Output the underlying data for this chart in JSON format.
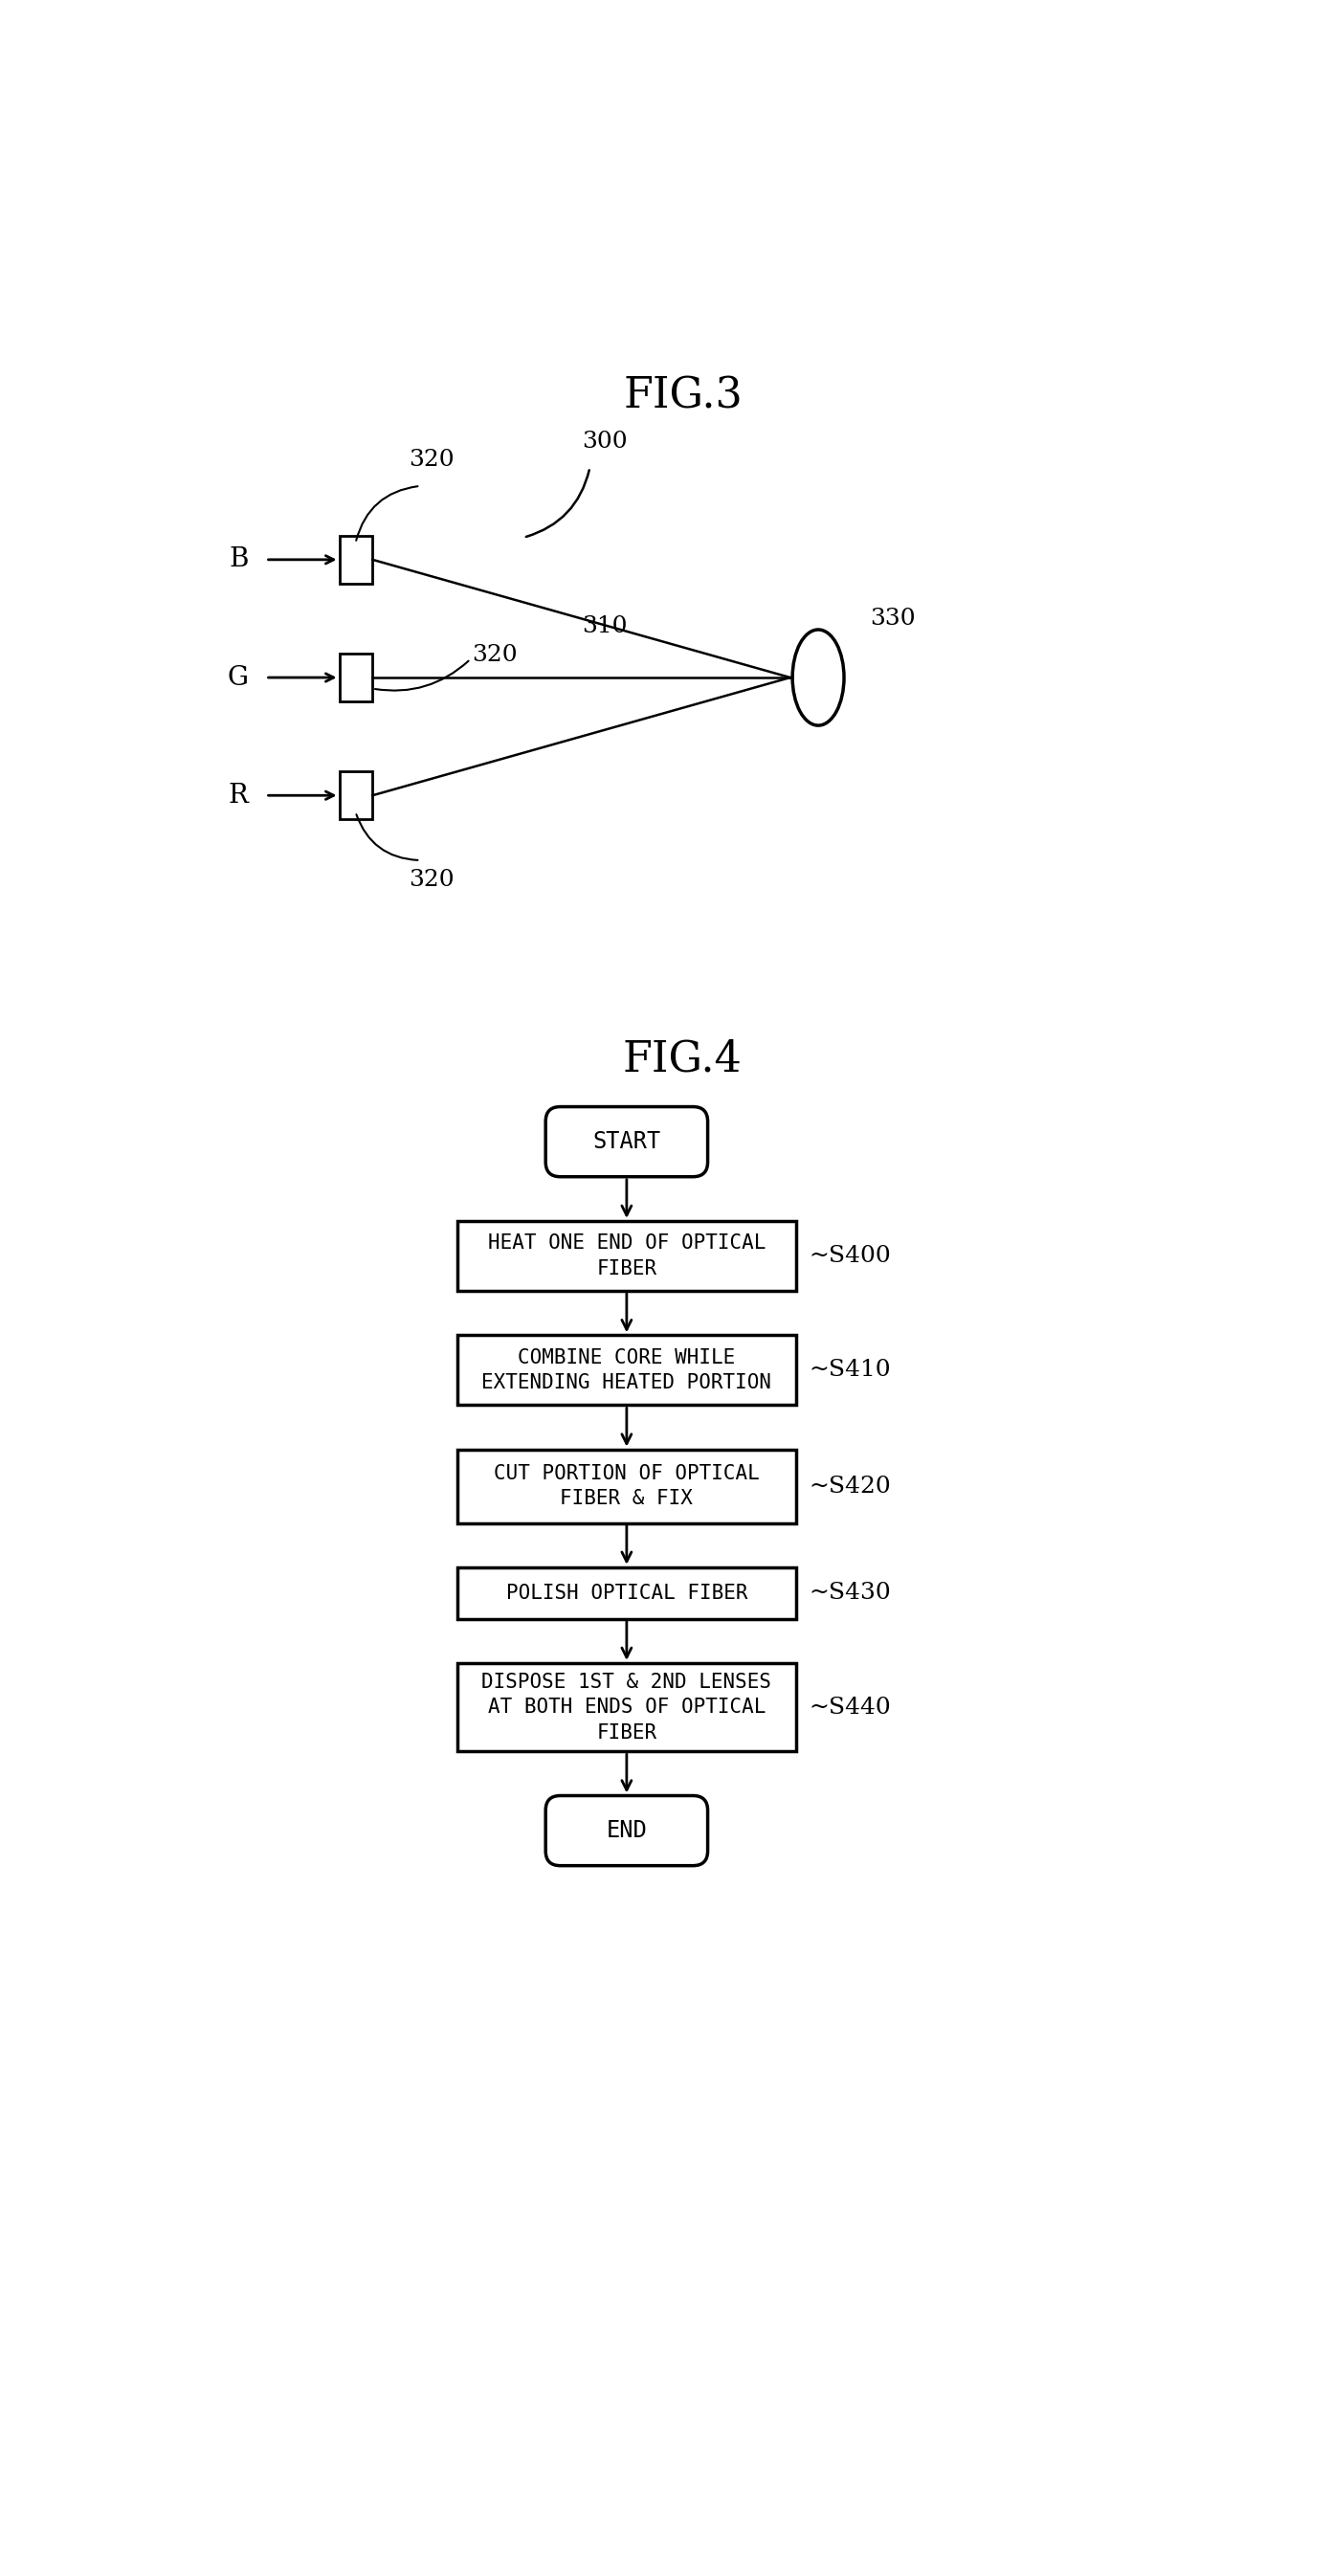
{
  "fig3_title": "FIG.3",
  "fig4_title": "FIG.4",
  "flow_steps": [
    "HEAT ONE END OF OPTICAL\nFIBER",
    "COMBINE CORE WHILE\nEXTENDING HEATED PORTION",
    "CUT PORTION OF OPTICAL\nFIBER & FIX",
    "POLISH OPTICAL FIBER",
    "DISPOSE 1ST & 2ND LENSES\nAT BOTH ENDS OF OPTICAL\nFIBER"
  ],
  "flow_labels": [
    "S400",
    "S410",
    "S420",
    "S430",
    "S440"
  ],
  "flow_start": "START",
  "flow_end": "END",
  "bg_color": "#ffffff",
  "line_color": "#000000",
  "text_color": "#000000",
  "fig_title_fontsize": 32,
  "label_fontsize": 18,
  "beam_label_fontsize": 20,
  "flow_fontsize": 15,
  "flow_label_fontsize": 18,
  "pill_fontsize": 17,
  "fig3_label_300": "300",
  "fig3_label_310": "310",
  "fig3_label_330": "330",
  "fig3_B": "B",
  "fig3_G": "G",
  "fig3_R": "R"
}
